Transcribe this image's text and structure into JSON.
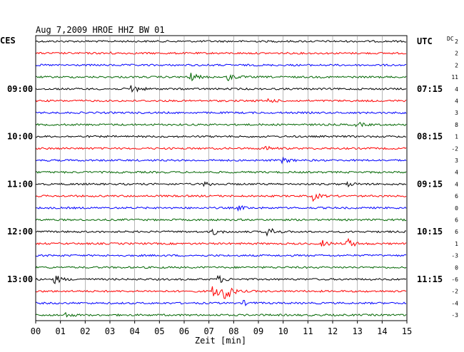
{
  "chart_data": {
    "type": "line",
    "title": "Aug 7,2009   HROE HHZ BW 01",
    "left_timezone": "CES",
    "right_timezone": "UTC",
    "dc_label": "DC",
    "xlabel": "Zeit [min]",
    "xlim": [
      0,
      15
    ],
    "x_ticks": [
      "00",
      "01",
      "02",
      "03",
      "04",
      "05",
      "06",
      "07",
      "08",
      "09",
      "10",
      "11",
      "12",
      "13",
      "14",
      "15"
    ],
    "grid": true,
    "colors": {
      "black": "#000000",
      "red": "#ff0000",
      "blue": "#0000ff",
      "green": "#006600"
    },
    "trace_colors": [
      "black",
      "red",
      "blue",
      "green",
      "black",
      "red",
      "blue",
      "green",
      "black",
      "red",
      "blue",
      "green",
      "black",
      "red",
      "blue",
      "green",
      "black",
      "red",
      "blue",
      "green",
      "black",
      "red",
      "blue",
      "green"
    ],
    "trace_dc_offsets": [
      "2",
      "2",
      "2",
      "11",
      "4",
      "4",
      "3",
      "8",
      "1",
      "-2",
      "3",
      "4",
      "4",
      "6",
      "0",
      "6",
      "6",
      "1",
      "-3",
      "0",
      "-6",
      "-2",
      "-4",
      "-3"
    ],
    "left_hour_labels": [
      {
        "trace": 4,
        "label": "09:00"
      },
      {
        "trace": 8,
        "label": "10:00"
      },
      {
        "trace": 12,
        "label": "11:00"
      },
      {
        "trace": 16,
        "label": "12:00"
      },
      {
        "trace": 20,
        "label": "13:00"
      }
    ],
    "right_hour_labels": [
      {
        "trace": 0,
        "label": "UTC"
      },
      {
        "trace": 4,
        "label": "07:15"
      },
      {
        "trace": 8,
        "label": "08:15"
      },
      {
        "trace": 12,
        "label": "09:15"
      },
      {
        "trace": 16,
        "label": "10:15"
      },
      {
        "trace": 20,
        "label": "11:15"
      }
    ],
    "events": [
      {
        "trace": 1,
        "minute": 2.8,
        "amp": 2
      },
      {
        "trace": 3,
        "minute": 6.2,
        "amp": 8
      },
      {
        "trace": 3,
        "minute": 7.8,
        "amp": 5
      },
      {
        "trace": 4,
        "minute": 3.9,
        "amp": 7
      },
      {
        "trace": 5,
        "minute": 9.4,
        "amp": 3
      },
      {
        "trace": 7,
        "minute": 13.0,
        "amp": 3
      },
      {
        "trace": 9,
        "minute": 9.3,
        "amp": 3
      },
      {
        "trace": 10,
        "minute": 10.0,
        "amp": 4
      },
      {
        "trace": 12,
        "minute": 6.8,
        "amp": 3
      },
      {
        "trace": 12,
        "minute": 12.6,
        "amp": 3
      },
      {
        "trace": 13,
        "minute": 11.2,
        "amp": 6
      },
      {
        "trace": 14,
        "minute": 8.2,
        "amp": 3
      },
      {
        "trace": 16,
        "minute": 7.2,
        "amp": 4
      },
      {
        "trace": 16,
        "minute": 9.4,
        "amp": 7
      },
      {
        "trace": 17,
        "minute": 11.6,
        "amp": 4
      },
      {
        "trace": 17,
        "minute": 12.6,
        "amp": 7
      },
      {
        "trace": 20,
        "minute": 0.8,
        "amp": 6
      },
      {
        "trace": 20,
        "minute": 7.4,
        "amp": 5
      },
      {
        "trace": 21,
        "minute": 7.6,
        "amp": 18
      },
      {
        "trace": 21,
        "minute": 7.2,
        "amp": 10
      },
      {
        "trace": 22,
        "minute": 8.4,
        "amp": 3
      },
      {
        "trace": 23,
        "minute": 1.2,
        "amp": 3
      }
    ]
  }
}
